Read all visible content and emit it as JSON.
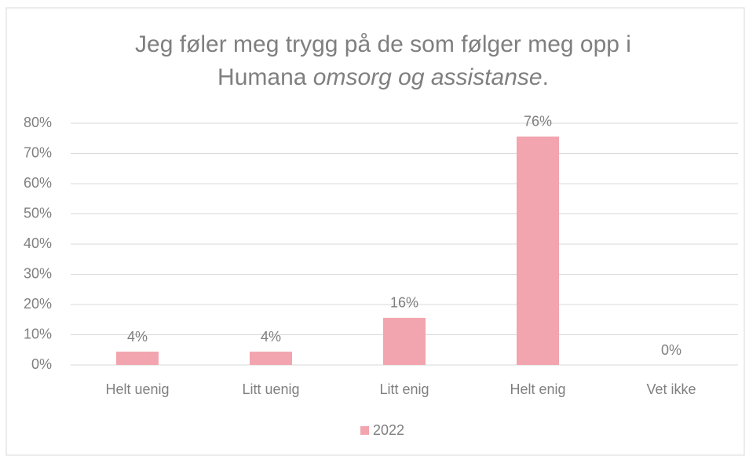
{
  "chart_data": {
    "type": "bar",
    "title": [
      "Jeg føler meg trygg på de som følger meg opp i",
      "Humana",
      "omsorg og assistanse",
      "."
    ],
    "categories": [
      "Helt uenig",
      "Litt uenig",
      "Litt enig",
      "Helt enig",
      "Vet ikke"
    ],
    "series": [
      {
        "name": "2022",
        "color": "#f2a5ae",
        "values": [
          4.4,
          4.4,
          15.6,
          75.6,
          0
        ],
        "value_labels": [
          "4%",
          "4%",
          "16%",
          "76%",
          "0%"
        ]
      }
    ],
    "ylim": [
      0,
      80
    ],
    "yticks": [
      {
        "value": 0,
        "label": "0%"
      },
      {
        "value": 10,
        "label": "10%"
      },
      {
        "value": 20,
        "label": "20%"
      },
      {
        "value": 30,
        "label": "30%"
      },
      {
        "value": 40,
        "label": "40%"
      },
      {
        "value": 50,
        "label": "50%"
      },
      {
        "value": 60,
        "label": "60%"
      },
      {
        "value": 70,
        "label": "70%"
      },
      {
        "value": 80,
        "label": "80%"
      }
    ],
    "grid": true,
    "legend": "bottom"
  }
}
